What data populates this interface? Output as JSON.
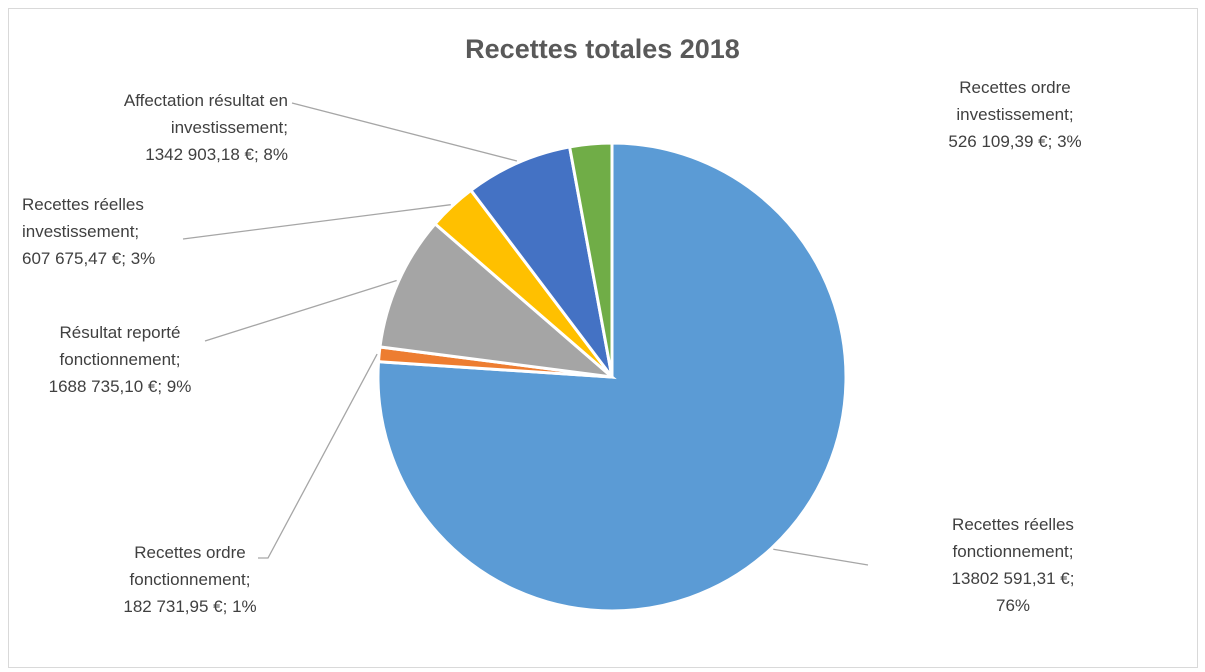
{
  "chart_data": {
    "type": "pie",
    "title": "Recettes totales 2018",
    "slices": [
      {
        "name": "Recettes réelles fonctionnement",
        "value": 13802591.31,
        "percent": 76,
        "color": "#5b9bd5",
        "label_lines": [
          "Recettes réelles",
          "fonctionnement;",
          "13802 591,31 €;",
          "76%"
        ]
      },
      {
        "name": "Recettes ordre fonctionnement",
        "value": 182731.95,
        "percent": 1,
        "color": "#ed7d31",
        "label_lines": [
          "Recettes ordre",
          "fonctionnement;",
          "182 731,95 €; 1%"
        ]
      },
      {
        "name": "Résultat reporté fonctionnement",
        "value": 1688735.1,
        "percent": 9,
        "color": "#a5a5a5",
        "label_lines": [
          "Résultat reporté",
          "fonctionnement;",
          "1688 735,10 €; 9%"
        ]
      },
      {
        "name": "Recettes réelles investissement",
        "value": 607675.47,
        "percent": 3,
        "color": "#ffc000",
        "label_lines": [
          "Recettes réelles",
          "investissement;",
          "607 675,47 €; 3%"
        ]
      },
      {
        "name": "Affectation résultat en investissement",
        "value": 1342903.18,
        "percent": 8,
        "color": "#4472c4",
        "label_lines": [
          "Affectation résultat en",
          "investissement;",
          "1342 903,18 €; 8%"
        ]
      },
      {
        "name": "Recettes ordre investissement",
        "value": 526109.39,
        "percent": 3,
        "color": "#70ad47",
        "label_lines": [
          "Recettes ordre",
          "investissement;",
          "526 109,39 €; 3%"
        ]
      }
    ],
    "legend": "none"
  }
}
